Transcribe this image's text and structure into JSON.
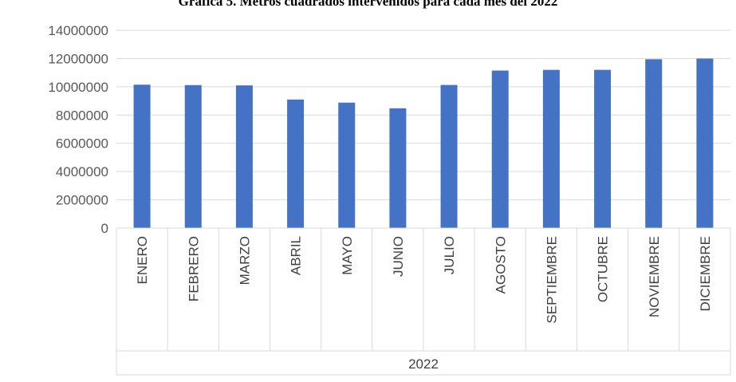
{
  "chart_data": {
    "type": "bar",
    "title": "Gráfica 5. Metros cuadrados intervenidos para cada mes del 2022",
    "categories": [
      "ENERO",
      "FEBRERO",
      "MARZO",
      "ABRIL",
      "MAYO",
      "JUNIO",
      "JULIO",
      "AGOSTO",
      "SEPTIEMBRE",
      "OCTUBRE",
      "NOVIEMBRE",
      "DICIEMBRE"
    ],
    "group_label": "2022",
    "values": [
      10150000,
      10120000,
      10100000,
      9100000,
      8880000,
      8480000,
      10130000,
      11150000,
      11200000,
      11200000,
      11950000,
      12000000
    ],
    "ylim": [
      0,
      14000000
    ],
    "yticks": [
      0,
      2000000,
      4000000,
      6000000,
      8000000,
      10000000,
      12000000,
      14000000
    ],
    "grid": true,
    "bar_color": "#4472c4",
    "xlabel": "",
    "ylabel": ""
  }
}
